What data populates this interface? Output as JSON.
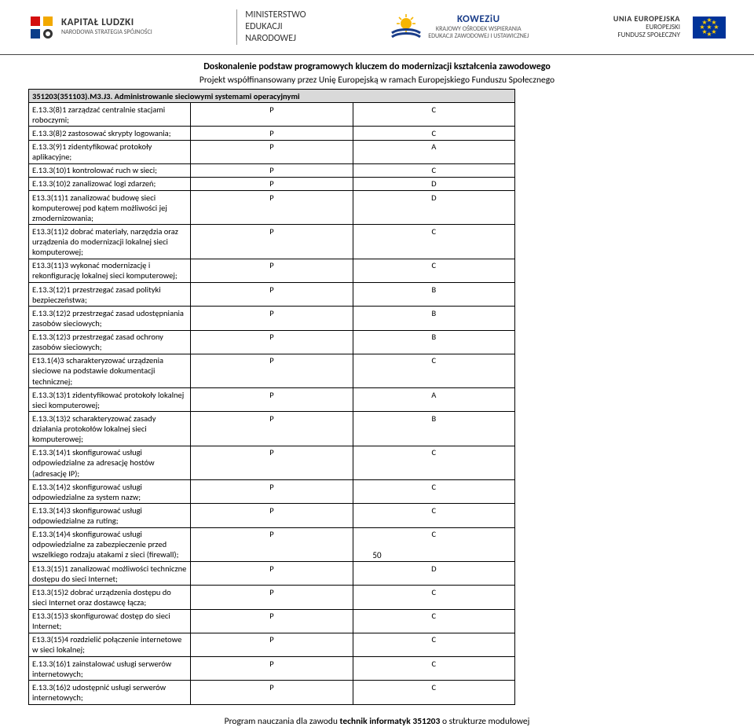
{
  "header": {
    "kapital": {
      "title": "KAPITAŁ LUDZKI",
      "sub": "NARODOWA STRATEGIA SPÓJNOŚCI"
    },
    "ministerstwo": {
      "l1": "MINISTERSTWO",
      "l2": "EDUKACJI",
      "l3": "NARODOWEJ"
    },
    "koweziu": {
      "title": "KOWEZiU",
      "sub1": "KRAJOWY OŚRODEK WSPIERANIA",
      "sub2": "EDUKACJI ZAWODOWEJ I USTAWICZNEJ"
    },
    "eu": {
      "l1": "UNIA EUROPEJSKA",
      "l2": "EUROPEJSKI",
      "l3": "FUNDUSZ SPOŁECZNY"
    }
  },
  "titles": {
    "t1": "Doskonalenie podstaw programowych kluczem do modernizacji kształcenia zawodowego",
    "t2": "Projekt współfinansowany przez Unię Europejską w ramach Europejskiego Funduszu Społecznego"
  },
  "section_header": "351203(351103).M3.J3. Administrowanie sieciowymi systemami operacyjnymi",
  "rows": [
    {
      "d": "E.13.3(8)1 zarządzać centralnie stacjami roboczymi;",
      "p": "P",
      "c": "C"
    },
    {
      "d": "E.13.3(8)2 zastosować skrypty logowania;",
      "p": "P",
      "c": "C"
    },
    {
      "d": "E.13.3(9)1 zidentyfikować protokoły aplikacyjne;",
      "p": "P",
      "c": "A"
    },
    {
      "d": "E.13.3(10)1 kontrolować ruch w sieci;",
      "p": "P",
      "c": "C"
    },
    {
      "d": "E.13.3(10)2 zanalizować logi zdarzeń;",
      "p": "P",
      "c": "D"
    },
    {
      "d": "E13.3(11)1 zanalizować budowę sieci komputerowej pod kątem możliwości jej zmodernizowania;",
      "p": "P",
      "c": "D"
    },
    {
      "d": "E13.3(11)2 dobrać materiały, narzędzia oraz urządzenia do modernizacji lokalnej sieci komputerowej;",
      "p": "P",
      "c": "C"
    },
    {
      "d": "E13.3(11)3 wykonać modernizację i rekonfigurację lokalnej sieci komputerowej;",
      "p": "P",
      "c": "C"
    },
    {
      "d": "E.13.3(12)1 przestrzegać zasad polityki bezpieczeństwa;",
      "p": "P",
      "c": "B"
    },
    {
      "d": "E.13.3(12)2 przestrzegać zasad udostępniania zasobów sieciowych;",
      "p": "P",
      "c": "B"
    },
    {
      "d": "E.13.3(12)3 przestrzegać zasad ochrony zasobów sieciowych;",
      "p": "P",
      "c": "B"
    },
    {
      "d": "E13.1(4)3 scharakteryzować urządzenia sieciowe na podstawie dokumentacji technicznej;",
      "p": "P",
      "c": "C"
    },
    {
      "d": "E.13.3(13)1 zidentyfikować protokoły lokalnej sieci komputerowej;",
      "p": "P",
      "c": "A"
    },
    {
      "d": "E.13.3(13)2 scharakteryzować zasady działania protokołów lokalnej sieci komputerowej;",
      "p": "P",
      "c": "B"
    },
    {
      "d": "E.13.3(14)1 skonfigurować usługi odpowiedzialne za adresację hostów (adresację IP);",
      "p": "P",
      "c": "C"
    },
    {
      "d": "E.13.3(14)2 skonfigurować usługi odpowiedzialne za system nazw;",
      "p": "P",
      "c": "C"
    },
    {
      "d": "E.13.3(14)3 skonfigurować usługi odpowiedzialne za ruting;",
      "p": "P",
      "c": "C"
    },
    {
      "d": "E.13.3(14)4 skonfigurować usługi odpowiedzialne za zabezpieczenie przed wszelkiego rodzaju atakami z sieci (firewall);",
      "p": "P",
      "c": "C"
    },
    {
      "d": "E13.3(15)1 zanalizować możliwości techniczne dostępu do sieci Internet;",
      "p": "P",
      "c": "D"
    },
    {
      "d": "E13.3(15)2 dobrać urządzenia dostępu do sieci Internet oraz dostawcę łącza;",
      "p": "P",
      "c": "C"
    },
    {
      "d": "E13.3(15)3 skonfigurować dostęp do sieci Internet;",
      "p": "P",
      "c": "C"
    },
    {
      "d": "E13.3(15)4 rozdzielić połączenie internetowe w sieci lokalnej;",
      "p": "P",
      "c": "C"
    },
    {
      "d": "E.13.3(16)1 zainstalować usługi serwerów internetowych;",
      "p": "P",
      "c": "C"
    },
    {
      "d": "E.13.3(16)2 udostępnić usługi serwerów internetowych;",
      "p": "P",
      "c": "C"
    }
  ],
  "footer": {
    "pre": "Program nauczania dla zawodu ",
    "bold": "technik informatyk 351203",
    "post": " o strukturze modułowej"
  },
  "page_number": "50"
}
